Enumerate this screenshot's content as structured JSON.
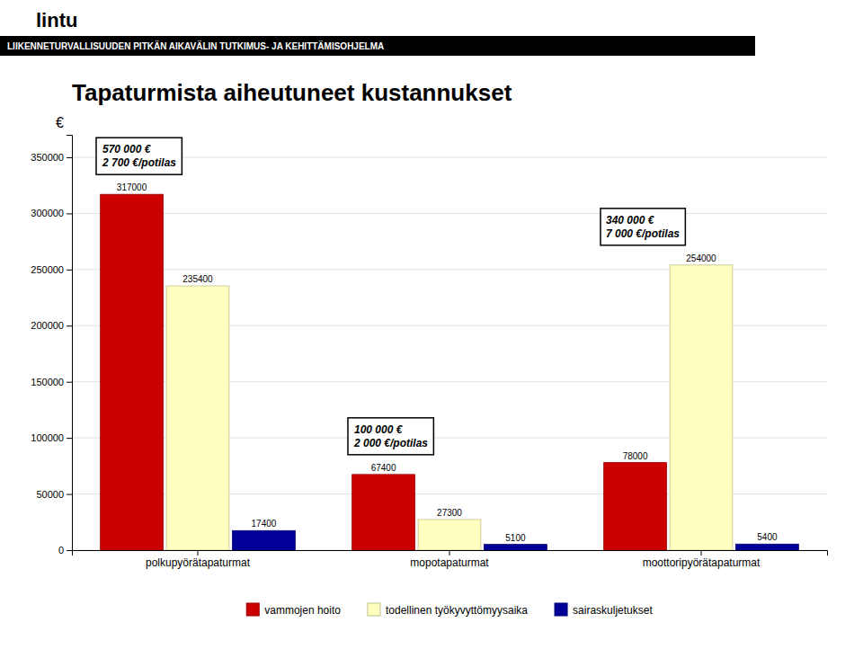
{
  "chart_data": {
    "type": "bar",
    "title": "Tapaturmista aiheutuneet kustannukset",
    "subtitle": "LIIKENNETURVALLISUUDEN PITKÄN AIKAVÄLIN TUTKIMUS- JA KEHITTÄMISOHJELMA",
    "categories": [
      "polkupyörätapaturmat",
      "mopotapaturmat",
      "moottoripyörätapaturmat"
    ],
    "series": [
      {
        "name": "vammojen hoito",
        "color": "#cc0000",
        "values": [
          317000,
          67400,
          78000
        ]
      },
      {
        "name": "todellinen työkyvyttömyysaika",
        "color": "#ffffc0",
        "values": [
          235400,
          27300,
          254000
        ]
      },
      {
        "name": "sairaskuljetukset",
        "color": "#000099",
        "values": [
          17400,
          5100,
          5400
        ]
      }
    ],
    "y_label": "€",
    "ylim": [
      0,
      370000
    ],
    "yticks": [
      0,
      50000,
      100000,
      150000,
      200000,
      250000,
      300000,
      350000
    ],
    "grid": true,
    "legend": "bottom",
    "data_labels": true,
    "annotations": [
      {
        "text": "570 000 €\n2 700 €/potilas",
        "category": "polkupyörätapaturmat"
      },
      {
        "text": "100 000 €\n2 000 €/potilas",
        "category": "mopotapaturmat"
      },
      {
        "text": "340 000 €\n7 000 €/potilas",
        "category": "moottoripyörätapaturmat"
      },
      {
        "text": "lintu"
      }
    ]
  }
}
